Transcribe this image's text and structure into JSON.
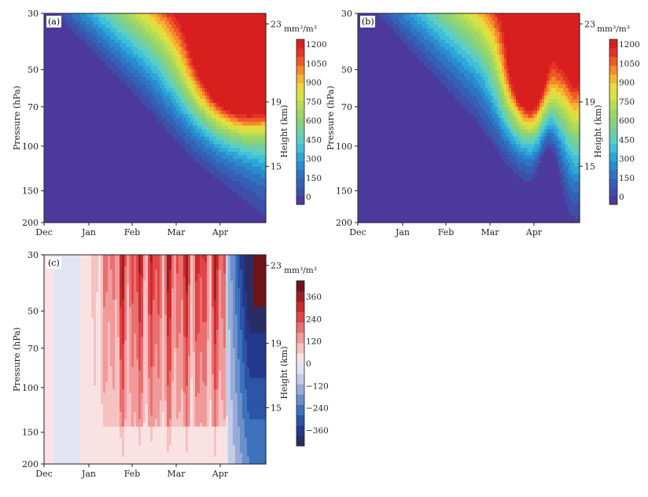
{
  "chart_data": [
    {
      "type": "heatmap",
      "panel": "(a)",
      "xlabel": "",
      "ylabel": "Pressure (hPa)",
      "y2label": "Height (km)",
      "x_tick_labels": [
        "Dec",
        "Jan",
        "Feb",
        "Mar",
        "Apr"
      ],
      "y_ticks": [
        30,
        50,
        70,
        100,
        150,
        200
      ],
      "y2_ticks": [
        23,
        19,
        15
      ],
      "ylim": [
        200,
        30
      ],
      "y_scale": "log",
      "colorbar": {
        "unit": "mm³/m³",
        "levels": [
          0,
          150,
          300,
          450,
          600,
          750,
          900,
          1050,
          1200
        ],
        "colors": [
          "#4b3a9b",
          "#3d4fa8",
          "#3560b5",
          "#2f74c2",
          "#2a8bcf",
          "#2ea6d8",
          "#41bfd8",
          "#5bcfc2",
          "#74cf9c",
          "#88d27c",
          "#9dd667",
          "#b6dc55",
          "#d2e246",
          "#ecd83c",
          "#f6b431",
          "#f48a2a",
          "#ee5a27",
          "#e63325",
          "#d81f20"
        ]
      },
      "values": {
        "max": 1350,
        "min": 0,
        "peak_time": "Apr",
        "peak_pressure_hPa": 50
      }
    },
    {
      "type": "heatmap",
      "panel": "(b)",
      "xlabel": "",
      "ylabel": "Pressure (hPa)",
      "y2label": "Height (km)",
      "x_tick_labels": [
        "Dec",
        "Jan",
        "Feb",
        "Mar",
        "Apr"
      ],
      "y_ticks": [
        30,
        50,
        70,
        100,
        150,
        200
      ],
      "y2_ticks": [
        23,
        19,
        15
      ],
      "ylim": [
        200,
        30
      ],
      "y_scale": "log",
      "colorbar": {
        "unit": "mm³/m³",
        "levels": [
          0,
          150,
          300,
          450,
          600,
          750,
          900,
          1050,
          1200
        ],
        "colors": [
          "#4b3a9b",
          "#3d4fa8",
          "#3560b5",
          "#2f74c2",
          "#2a8bcf",
          "#2ea6d8",
          "#41bfd8",
          "#5bcfc2",
          "#74cf9c",
          "#88d27c",
          "#9dd667",
          "#b6dc55",
          "#d2e246",
          "#ecd83c",
          "#f6b431",
          "#f48a2a",
          "#ee5a27",
          "#e63325",
          "#d81f20"
        ]
      },
      "values": {
        "max": 1300,
        "min": 0,
        "peak_time": "late Mar",
        "peak_pressure_hPa": 55
      }
    },
    {
      "type": "heatmap",
      "panel": "(c)",
      "xlabel": "",
      "ylabel": "Pressure (hPa)",
      "y2label": "Height (km)",
      "x_tick_labels": [
        "Dec",
        "Jan",
        "Feb",
        "Mar",
        "Apr"
      ],
      "y_ticks": [
        30,
        50,
        70,
        100,
        150,
        200
      ],
      "y2_ticks": [
        23,
        19,
        15
      ],
      "ylim": [
        200,
        30
      ],
      "y_scale": "log",
      "colorbar": {
        "unit": "mm³/m³",
        "labels": [
          "360",
          "240",
          "120",
          "0",
          "−120",
          "−240",
          "−360"
        ],
        "levels": [
          -360,
          -240,
          -120,
          0,
          120,
          240,
          360
        ],
        "colors": [
          "#2a2c66",
          "#23398d",
          "#2a55a8",
          "#3d72bc",
          "#6a8fca",
          "#98abd8",
          "#c4cbe6",
          "#e2e4f4",
          "#fbe2e2",
          "#f6c1c1",
          "#f19a9a",
          "#ea6f70",
          "#e34446",
          "#cc2a2e",
          "#9c1f23",
          "#6e1418"
        ]
      },
      "values": {
        "max": 400,
        "min": -400,
        "positive_period": "Jan–Mar",
        "negative_period": "Apr"
      }
    }
  ]
}
